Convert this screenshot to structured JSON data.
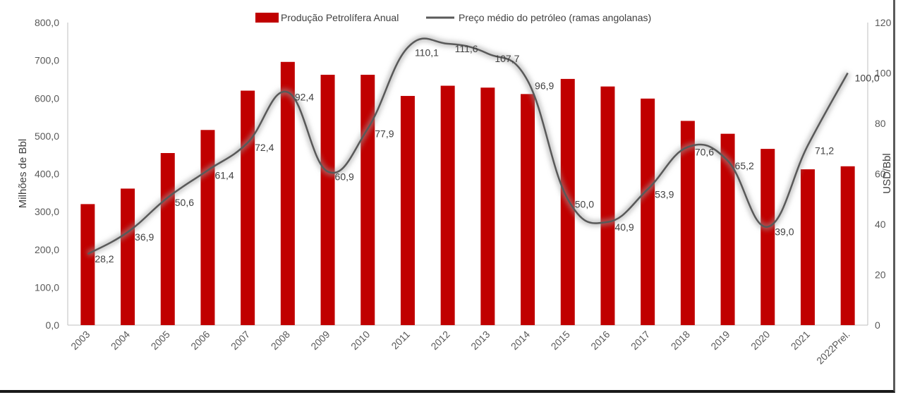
{
  "chart_data": {
    "type": "bar",
    "categories": [
      "2003",
      "2004",
      "2005",
      "2006",
      "2007",
      "2008",
      "2009",
      "2010",
      "2011",
      "2012",
      "2013",
      "2014",
      "2015",
      "2016",
      "2017",
      "2018",
      "2019",
      "2020",
      "2021",
      "2022Prel."
    ],
    "series": [
      {
        "name": "Produção Petrolífera Anual",
        "type": "bar",
        "axis": "left",
        "color": "#c00000",
        "values": [
          320,
          361,
          455,
          516,
          620,
          696,
          662,
          662,
          606,
          633,
          628,
          611,
          651,
          631,
          599,
          540,
          506,
          466,
          412,
          420
        ]
      },
      {
        "name": "Preço médio do petróleo (ramas angolanas)",
        "type": "line",
        "axis": "right",
        "color": "#595959",
        "values": [
          28.2,
          36.9,
          50.6,
          61.4,
          72.4,
          92.4,
          60.9,
          77.9,
          110.1,
          111.6,
          107.7,
          96.9,
          50.0,
          40.9,
          53.9,
          70.6,
          65.2,
          39.0,
          71.2,
          100.0
        ],
        "labels": [
          "28,2",
          "36,9",
          "50,6",
          "61,4",
          "72,4",
          "92,4",
          "60,9",
          "77,9",
          "110,1",
          "111,6",
          "107,7",
          "96,9",
          "50,0",
          "40,9",
          "53,9",
          "70,6",
          "65,2",
          "39,0",
          "71,2",
          "100,0"
        ]
      }
    ],
    "ylabel": "Milhões de Bbl",
    "y2label": "USD/Bbl",
    "ylim": [
      0,
      800
    ],
    "y2lim": [
      0,
      120
    ],
    "yticks": [
      "0,0",
      "100,0",
      "200,0",
      "300,0",
      "400,0",
      "500,0",
      "600,0",
      "700,0",
      "800,0"
    ],
    "y2ticks": [
      "0",
      "20",
      "40",
      "60",
      "80",
      "100",
      "120"
    ],
    "grid": false,
    "legend_position": "top-center"
  }
}
